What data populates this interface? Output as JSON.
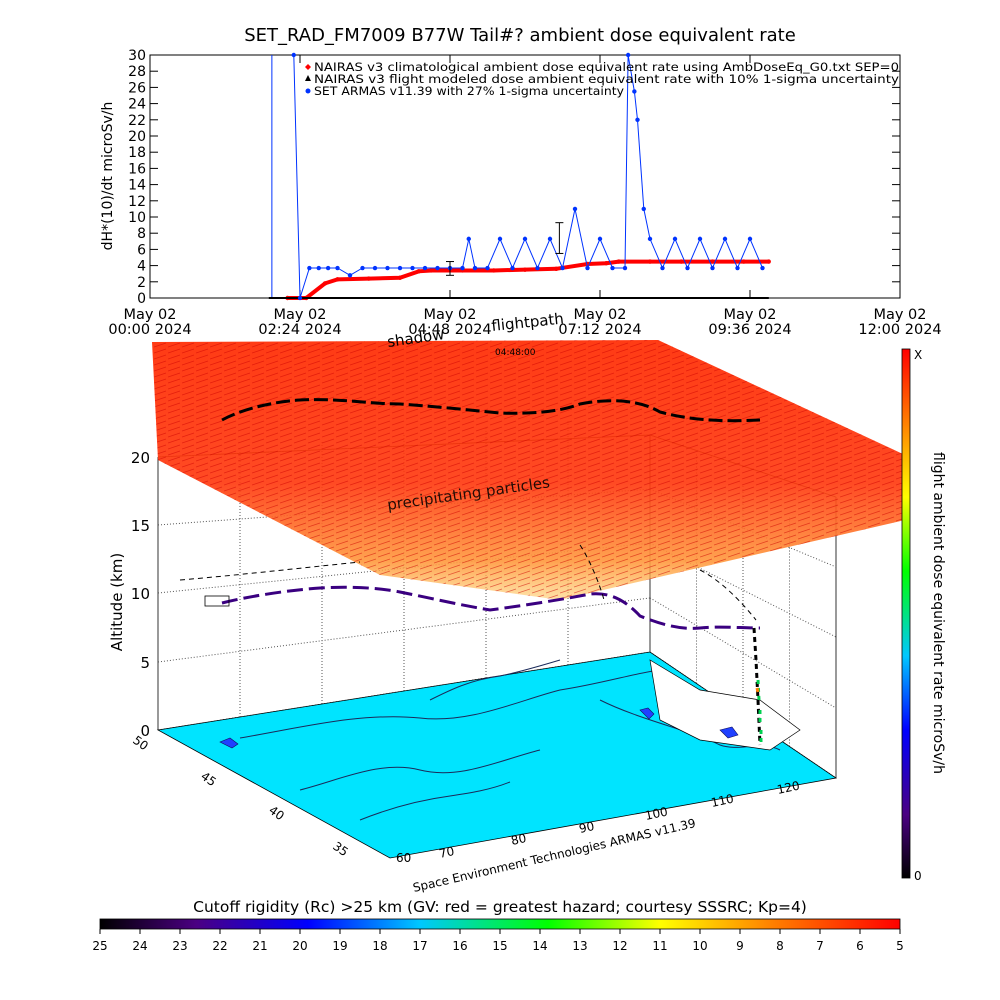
{
  "chart_data": [
    {
      "type": "line",
      "title": "SET_RAD_FM7009  B77W Tail#? ambient dose equivalent rate",
      "ylabel": "dH*(10)/dt microSv/h",
      "ylim": [
        0,
        30
      ],
      "yticks": [
        0,
        2,
        4,
        6,
        8,
        10,
        12,
        14,
        16,
        18,
        20,
        22,
        24,
        26,
        28,
        30
      ],
      "xlim_hours": [
        0,
        12
      ],
      "xticks": [
        {
          "line1": "May 02",
          "line2": "00:00 2024"
        },
        {
          "line1": "May 02",
          "line2": "02:24 2024"
        },
        {
          "line1": "May 02",
          "line2": "04:48 2024"
        },
        {
          "line1": "May 02",
          "line2": "07:12 2024"
        },
        {
          "line1": "May 02",
          "line2": "09:36 2024"
        },
        {
          "line1": "May 02",
          "line2": "12:00 2024"
        }
      ],
      "legend": [
        {
          "text": "NAIRAS v3 climatological ambient dose equivalent rate using AmbDoseEq_G0.txt SEP=0",
          "color": "#ff0000",
          "marker": "diamond"
        },
        {
          "text": "NAIRAS v3 flight modeled dose ambient equivalent rate with 10% 1-sigma uncertainty",
          "color": "#000000",
          "marker": "triangle"
        },
        {
          "text": "SET ARMAS v11.39 with 27% 1-sigma uncertainty",
          "color": "#0033ff",
          "marker": "dot"
        }
      ],
      "series": [
        {
          "name": "NAIRAS v3 climatological ambient dose equivalent rate using AmbDoseEq_G0.txt SEP=0",
          "color": "#ff0000",
          "x_hours": [
            2.2,
            2.5,
            2.8,
            3.0,
            3.5,
            4.0,
            4.3,
            4.5,
            5.0,
            5.5,
            6.0,
            6.5,
            7.0,
            7.3,
            7.5,
            8.0,
            8.5,
            9.0,
            9.5,
            9.9
          ],
          "values": [
            0.0,
            0.0,
            1.8,
            2.3,
            2.4,
            2.5,
            3.3,
            3.4,
            3.4,
            3.4,
            3.5,
            3.6,
            4.2,
            4.3,
            4.5,
            4.5,
            4.5,
            4.5,
            4.5,
            4.5
          ]
        },
        {
          "name": "NAIRAS v3 flight modeled dose ambient equivalent rate with 10% 1-sigma uncertainty",
          "color": "#000000",
          "x_hours": [
            1.9,
            9.9
          ],
          "values": [
            0.0,
            0.0
          ]
        },
        {
          "name": "SET ARMAS v11.39 with 27% 1-sigma uncertainty",
          "color": "#0033ff",
          "x_hours": [
            2.3,
            2.4,
            2.55,
            2.7,
            2.85,
            3.0,
            3.2,
            3.4,
            3.6,
            3.8,
            4.0,
            4.2,
            4.4,
            4.6,
            4.8,
            5.0,
            5.1,
            5.2,
            5.4,
            5.6,
            5.8,
            6.0,
            6.2,
            6.4,
            6.6,
            6.8,
            7.0,
            7.2,
            7.4,
            7.6,
            7.65,
            7.75,
            7.8,
            7.9,
            8.0,
            8.2,
            8.4,
            8.6,
            8.8,
            9.0,
            9.2,
            9.4,
            9.6,
            9.8
          ],
          "values": [
            30,
            0,
            3.7,
            3.7,
            3.7,
            3.7,
            2.8,
            3.7,
            3.7,
            3.7,
            3.7,
            3.7,
            3.7,
            3.7,
            3.7,
            3.7,
            7.3,
            3.7,
            3.7,
            7.3,
            3.7,
            7.3,
            3.7,
            7.3,
            3.7,
            11.0,
            3.7,
            7.3,
            3.7,
            3.7,
            30.0,
            25.5,
            22.0,
            11.0,
            7.3,
            3.7,
            7.3,
            3.7,
            7.3,
            3.7,
            7.3,
            3.7,
            7.3,
            3.7
          ],
          "error_bars": [
            {
              "x_hour": 4.8,
              "value": 3.7,
              "low": 2.8,
              "high": 4.5
            },
            {
              "x_hour": 6.55,
              "value": 7.3,
              "low": 5.5,
              "high": 9.3
            }
          ]
        }
      ]
    },
    {
      "type": "other",
      "axis_labels": {
        "z": "Altitude (km)",
        "colorbar": "flight ambient dose equivalent rate microSv/h"
      },
      "z_ticks": [
        "0",
        "5",
        "10",
        "15",
        "20"
      ],
      "lon_ticks": [
        "70",
        "80",
        "90",
        "100",
        "110",
        "120"
      ],
      "lat_ticks": [
        "50",
        "45",
        "40",
        "35"
      ],
      "lon_first_label": "60",
      "colorbar_ticks": {
        "top": "X",
        "bottom": "0"
      },
      "annotations": {
        "shadow": "shadow",
        "flightpath": "flightpath",
        "dotted_label": "04:48:00",
        "precipitating": "precipitating particles",
        "credit": "Space Environment Technologies ARMAS v11.39"
      }
    },
    {
      "type": "heatmap",
      "title": "Cutoff rigidity (Rc) >25 km (GV: red = greatest hazard; courtesy SSSRC; Kp=4)",
      "tick_labels": [
        "25",
        "24",
        "23",
        "22",
        "21",
        "20",
        "19",
        "18",
        "17",
        "16",
        "15",
        "14",
        "13",
        "12",
        "11",
        "10",
        "9",
        "8",
        "7",
        "6",
        "5"
      ]
    }
  ]
}
